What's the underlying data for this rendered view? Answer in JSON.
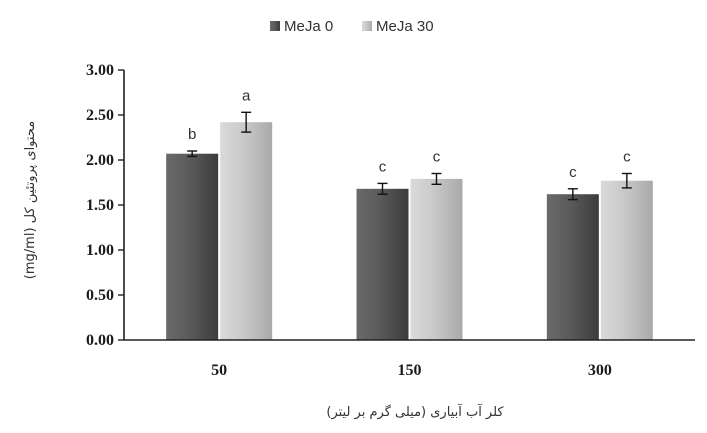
{
  "chart_data": {
    "type": "bar",
    "categories": [
      "50",
      "150",
      "300"
    ],
    "series": [
      {
        "name": "MeJa 0",
        "values": [
          2.07,
          1.68,
          1.62
        ],
        "errors": [
          0.03,
          0.06,
          0.06
        ],
        "letters": [
          "b",
          "c",
          "c"
        ],
        "color": "#555555"
      },
      {
        "name": "MeJa 30",
        "values": [
          2.42,
          1.79,
          1.77
        ],
        "errors": [
          0.11,
          0.06,
          0.08
        ],
        "letters": [
          "a",
          "c",
          "c"
        ],
        "color": "#c4c4c4"
      }
    ],
    "xlabel": "کلر آب آبیاری (میلی گرم بر لیتر)",
    "ylabel": "محتوای پروتئین کل (mg/ml)",
    "ylim": [
      0,
      3
    ],
    "yticks": [
      "0.00",
      "0.50",
      "1.00",
      "1.50",
      "2.00",
      "2.50",
      "3.00"
    ],
    "legend_position": "top-center",
    "grid": false
  }
}
